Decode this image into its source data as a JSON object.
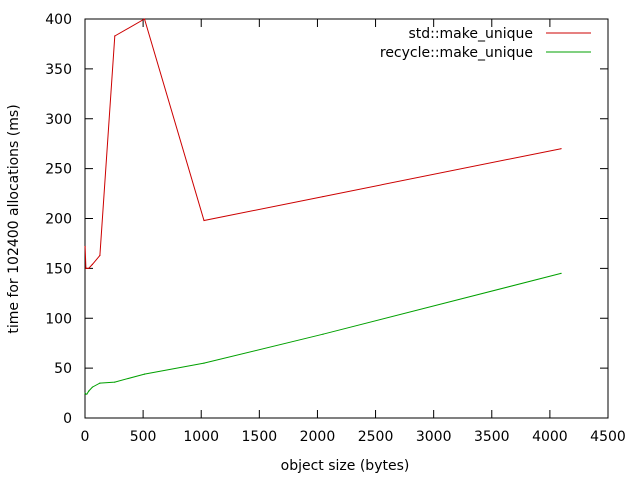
{
  "chart_data": {
    "type": "line",
    "xlabel": "object size (bytes)",
    "ylabel": "time for 102400 allocations (ms)",
    "xlim": [
      0,
      4500
    ],
    "ylim": [
      0,
      400
    ],
    "xticks": [
      0,
      500,
      1000,
      1500,
      2000,
      2500,
      3000,
      3500,
      4000,
      4500
    ],
    "yticks": [
      0,
      50,
      100,
      150,
      200,
      250,
      300,
      350,
      400
    ],
    "grid": false,
    "legend_position": "top-right",
    "series": [
      {
        "name": "std::make_unique",
        "color": "#cc0000",
        "points": [
          [
            1,
            172
          ],
          [
            8,
            150
          ],
          [
            16,
            150
          ],
          [
            32,
            150
          ],
          [
            64,
            154
          ],
          [
            128,
            163
          ],
          [
            256,
            383
          ],
          [
            512,
            400
          ],
          [
            1024,
            198
          ],
          [
            2048,
            222
          ],
          [
            4096,
            270
          ]
        ]
      },
      {
        "name": "recycle::make_unique",
        "color": "#00a000",
        "points": [
          [
            1,
            25
          ],
          [
            8,
            24
          ],
          [
            16,
            24
          ],
          [
            32,
            27
          ],
          [
            64,
            31
          ],
          [
            128,
            35
          ],
          [
            256,
            36
          ],
          [
            512,
            44
          ],
          [
            1024,
            55
          ],
          [
            2048,
            84
          ],
          [
            4096,
            145
          ]
        ]
      }
    ]
  }
}
